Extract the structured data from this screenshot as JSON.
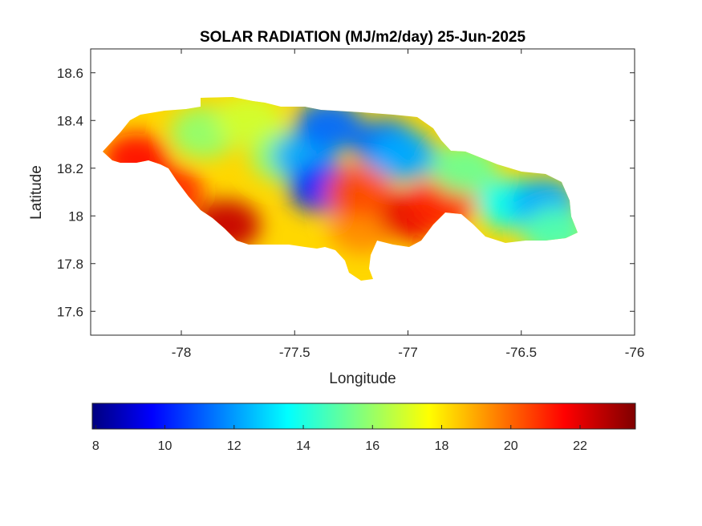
{
  "chart_data": {
    "type": "heatmap",
    "title": "SOLAR RADIATION (MJ/m2/day) 25-Jun-2025",
    "xlabel": "Longitude",
    "ylabel": "Latitude",
    "xlim": [
      -78.4,
      -76.0
    ],
    "ylim": [
      17.5,
      18.7
    ],
    "xticks": [
      -78,
      -77.5,
      -77,
      -76.5,
      -76
    ],
    "xtick_labels": [
      "-78",
      "-77.5",
      "-77",
      "-76.5",
      "-76"
    ],
    "yticks": [
      17.6,
      17.8,
      18,
      18.2,
      18.4,
      18.6
    ],
    "ytick_labels": [
      "17.6",
      "17.8",
      "18",
      "18.2",
      "18.4",
      "18.6"
    ],
    "colormap": "jet",
    "colorbar": {
      "orientation": "horizontal",
      "location": "below",
      "range": [
        7.9,
        23.6
      ],
      "ticks": [
        8,
        10,
        12,
        14,
        16,
        18,
        20,
        22
      ],
      "tick_labels": [
        "8",
        "10",
        "12",
        "14",
        "16",
        "18",
        "20",
        "22"
      ]
    },
    "regions": [
      {
        "lon": -78.2,
        "lat": 18.24,
        "value": 21.5
      },
      {
        "lon": -78.05,
        "lat": 18.1,
        "value": 21.0
      },
      {
        "lon": -77.8,
        "lat": 17.96,
        "value": 22.5
      },
      {
        "lon": -77.9,
        "lat": 18.35,
        "value": 16.0
      },
      {
        "lon": -77.7,
        "lat": 18.4,
        "value": 17.0
      },
      {
        "lon": -77.55,
        "lat": 18.25,
        "value": 16.0
      },
      {
        "lon": -77.45,
        "lat": 18.25,
        "value": 12.5
      },
      {
        "lon": -77.38,
        "lat": 18.12,
        "value": 10.5
      },
      {
        "lon": -77.35,
        "lat": 18.38,
        "value": 11.5
      },
      {
        "lon": -77.1,
        "lat": 18.3,
        "value": 11.5
      },
      {
        "lon": -77.02,
        "lat": 18.25,
        "value": 12.5
      },
      {
        "lon": -77.2,
        "lat": 17.95,
        "value": 19.5
      },
      {
        "lon": -77.22,
        "lat": 18.1,
        "value": 20.5
      },
      {
        "lon": -76.98,
        "lat": 18.0,
        "value": 22.0
      },
      {
        "lon": -76.85,
        "lat": 18.05,
        "value": 21.0
      },
      {
        "lon": -76.75,
        "lat": 18.2,
        "value": 15.5
      },
      {
        "lon": -76.55,
        "lat": 18.05,
        "value": 14.0
      },
      {
        "lon": -76.4,
        "lat": 18.05,
        "value": 12.5
      },
      {
        "lon": -76.35,
        "lat": 17.93,
        "value": 15.0
      }
    ]
  }
}
